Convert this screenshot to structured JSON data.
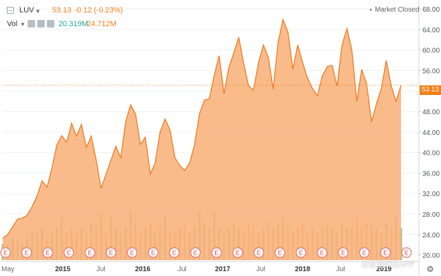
{
  "header": {
    "symbol": "LUV",
    "price": "53.13",
    "change": "-0.12 (-0.23%)",
    "market_status": "Market Closed",
    "vol_label": "Vol",
    "vol_value_1": "20.319M",
    "vol_value_2": "24.712M"
  },
  "price_tag": "53.13",
  "watermark": "@智通财经APP",
  "colors": {
    "accent": "#f57f17",
    "area_fill": "#f8b27a",
    "line": "#ee7a22",
    "volume_up": "#9fae78",
    "volume_down": "#e9a17c",
    "vol_value_1": "#26a69a",
    "vol_value_2": "#f57f17"
  },
  "chart_data": {
    "type": "area",
    "title": "",
    "xlabel": "",
    "ylabel": "",
    "x_tick_labels": [
      "May",
      "2015",
      "Jul",
      "2016",
      "Jul",
      "2017",
      "Jul",
      "2018",
      "Jul",
      "2019"
    ],
    "y_ticks": [
      20,
      24,
      28,
      32,
      36,
      40,
      44,
      48,
      52,
      56,
      60,
      64,
      68
    ],
    "y_tick_labels": [
      "20.00",
      "24.00",
      "28.00",
      "32.00",
      "36.00",
      "40.00",
      "44.00",
      "48.00",
      "52.00",
      "56.00",
      "60.00",
      "64.00",
      "68.00"
    ],
    "ylim": [
      19,
      69.5
    ],
    "last_price": 53.13,
    "grid": true,
    "series": [
      {
        "values": [
          23.3,
          24.0,
          25.5,
          27.0,
          27.2,
          27.8,
          29.5,
          31.6,
          34.5,
          33.2,
          37.0,
          41.5,
          43.3,
          42.0,
          45.7,
          43.2,
          45.5,
          41.0,
          43.2,
          38.5,
          33.0,
          35.8,
          38.5,
          41.2,
          39.0,
          46.0,
          49.3,
          47.5,
          41.6,
          43.0,
          35.8,
          38.0,
          44.0,
          46.5,
          44.5,
          39.0,
          37.5,
          36.5,
          38.0,
          41.5,
          47.5,
          50.2,
          50.5,
          55.0,
          58.9,
          51.5,
          56.6,
          59.5,
          62.5,
          57.3,
          53.0,
          52.2,
          57.5,
          61.0,
          58.6,
          52.4,
          61.5,
          66.0,
          63.5,
          56.3,
          61.0,
          57.5,
          54.5,
          52.5,
          51.1,
          55.0,
          56.8,
          57.0,
          53.0,
          61.0,
          64.2,
          60.0,
          50.0,
          56.2,
          53.5,
          46.0,
          49.5,
          52.5,
          58.0,
          53.0,
          50.0,
          53.13
        ]
      }
    ],
    "volume": {
      "values": [
        3,
        3,
        4,
        4,
        3,
        4,
        5,
        5,
        6,
        4,
        5,
        6,
        8,
        5,
        6,
        5,
        6,
        5,
        7,
        6,
        9,
        5,
        8,
        6,
        5,
        6,
        9,
        7,
        5,
        6,
        7,
        5,
        6,
        8,
        5,
        5,
        6,
        7,
        5,
        6,
        9,
        7,
        6,
        9,
        6,
        5,
        6,
        7,
        6,
        5,
        7,
        6,
        5,
        6,
        7,
        6,
        7,
        8,
        6,
        5,
        6,
        7,
        5,
        6,
        5,
        6,
        7,
        6,
        5,
        7,
        6,
        6,
        8,
        6,
        7,
        7,
        6,
        5,
        7,
        6,
        8,
        6
      ]
    },
    "earnings_markers": {
      "label": "E",
      "count": 20
    }
  }
}
